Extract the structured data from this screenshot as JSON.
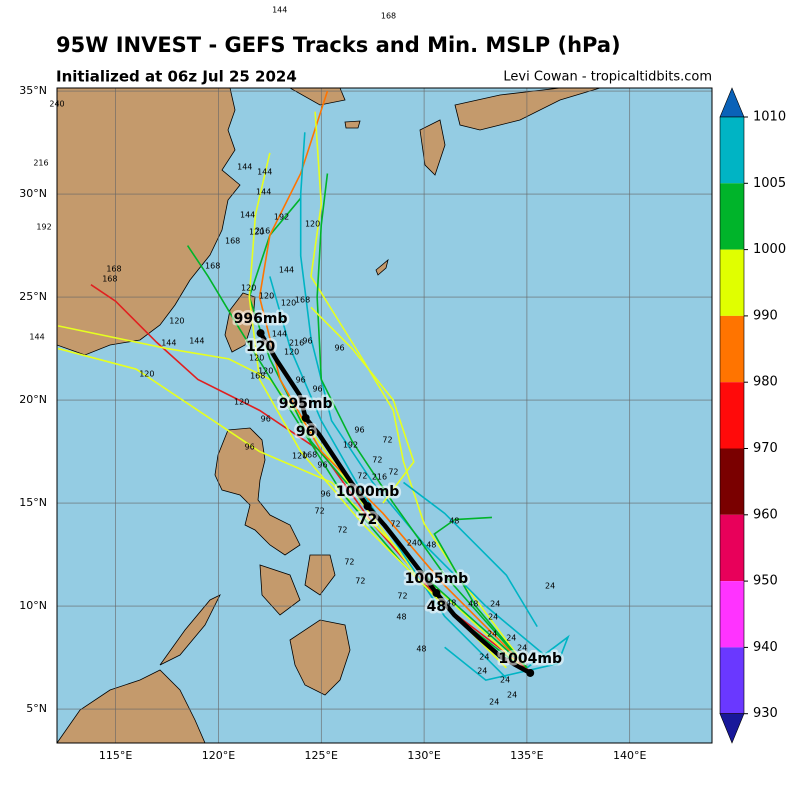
{
  "map": {
    "title": "95W INVEST - GEFS Tracks and Min. MSLP (hPa)",
    "subtitle": "Initialized at 06z Jul 25 2024",
    "credit": "Levi Cowan - tropicaltidbits.com",
    "lon_range": [
      112.15,
      144
    ],
    "lat_range": [
      3.35,
      35.15
    ],
    "lon_ticks": [
      {
        "value": 115,
        "label": "115°E"
      },
      {
        "value": 120,
        "label": "120°E"
      },
      {
        "value": 125,
        "label": "125°E"
      },
      {
        "value": 130,
        "label": "130°E"
      },
      {
        "value": 135,
        "label": "135°E"
      },
      {
        "value": 140,
        "label": "140°E"
      }
    ],
    "lat_ticks": [
      {
        "value": 5,
        "label": "5°N"
      },
      {
        "value": 10,
        "label": "10°N"
      },
      {
        "value": 15,
        "label": "15°N"
      },
      {
        "value": 20,
        "label": "20°N"
      },
      {
        "value": 25,
        "label": "25°N"
      },
      {
        "value": 30,
        "label": "30°N"
      },
      {
        "value": 35,
        "label": "35°N"
      }
    ],
    "colorbar": {
      "ticks": [
        1010,
        1005,
        1000,
        990,
        980,
        970,
        960,
        950,
        940,
        930
      ],
      "colors": [
        "#0a62b8",
        "#00b4c4",
        "#00b42a",
        "#e0ff00",
        "#ff7400",
        "#ff0a0a",
        "#7a0000",
        "#e8005a",
        "#ff33ff",
        "#6a38ff",
        "#18189a"
      ]
    },
    "members": [
      {
        "color": "#e02020",
        "lon": [
          135.2,
          131,
          127.5,
          125,
          122,
          119,
          117,
          115,
          113.8
        ],
        "lat": [
          6.8,
          10,
          14,
          17.5,
          19.5,
          21,
          22.8,
          24.8,
          25.6
        ]
      },
      {
        "color": "#e6ff20",
        "lon": [
          135,
          131,
          128,
          125.5,
          122,
          119,
          116,
          112.2
        ],
        "lat": [
          6.8,
          10.5,
          13.5,
          16,
          17.5,
          19.5,
          21.5,
          22.5
        ]
      },
      {
        "color": "#e6ff20",
        "lon": [
          134,
          130,
          127,
          124.5,
          122.5,
          120.5,
          117.5,
          112.2
        ],
        "lat": [
          7,
          11,
          15,
          18.5,
          21,
          22,
          22.5,
          23.6
        ]
      },
      {
        "color": "#00b42a",
        "lon": [
          135,
          130.5,
          127.5,
          124.5,
          122.5,
          121.5,
          122.5,
          124
        ],
        "lat": [
          7,
          11,
          14.5,
          18,
          22,
          25,
          28,
          29.8
        ]
      },
      {
        "color": "#ff7400",
        "lon": [
          135,
          131,
          128,
          125,
          123,
          122,
          122.5,
          124,
          125.3
        ],
        "lat": [
          7,
          11,
          14.5,
          17.5,
          21,
          25,
          28,
          31,
          35
        ]
      },
      {
        "color": "#e6ff20",
        "lon": [
          135,
          132,
          130,
          129,
          128.5,
          127,
          124.5,
          125,
          124.7
        ],
        "lat": [
          7,
          11,
          14,
          17,
          19.5,
          22,
          26,
          29.5,
          34
        ]
      },
      {
        "color": "#00b4c4",
        "lon": [
          136,
          133,
          130,
          127.5,
          125.5,
          124.5,
          124,
          124,
          124.2
        ],
        "lat": [
          7.5,
          10,
          13,
          16,
          19,
          23,
          27,
          30,
          33
        ]
      },
      {
        "color": "#00b42a",
        "lon": [
          135,
          131,
          128.5,
          126.5,
          125,
          124.8,
          125,
          125.3
        ],
        "lat": [
          7,
          11.5,
          15,
          18,
          21,
          25,
          28.5,
          31
        ]
      },
      {
        "color": "#00b4c4",
        "lon": [
          135,
          137,
          136.5,
          133,
          131
        ],
        "lat": [
          7,
          8.5,
          7.2,
          6.4,
          8
        ]
      },
      {
        "color": "#00b4c4",
        "lon": [
          134,
          131,
          129,
          127,
          125,
          123.5,
          122.5
        ],
        "lat": [
          6.5,
          9.5,
          12.5,
          15.5,
          19,
          22.5,
          26
        ]
      },
      {
        "color": "#00b42a",
        "lon": [
          135,
          132.5,
          130.5,
          131.5,
          133.3
        ],
        "lat": [
          7,
          10,
          13.5,
          14.2,
          14.3
        ]
      },
      {
        "color": "#e6ff20",
        "lon": [
          128,
          129.5,
          128.5,
          126.5,
          124.5
        ],
        "lat": [
          15,
          17,
          20,
          22.5,
          24.5
        ]
      },
      {
        "color": "#00b4c4",
        "lon": [
          135.5,
          134,
          132.5,
          131,
          129
        ],
        "lat": [
          9,
          11.5,
          13,
          14.5,
          16
        ]
      },
      {
        "color": "#00b42a",
        "lon": [
          134.5,
          131.5,
          129,
          126,
          123.5,
          121,
          119.5,
          118.5
        ],
        "lat": [
          7.2,
          9.5,
          12,
          15.5,
          19.5,
          23.5,
          26,
          27.5
        ]
      },
      {
        "color": "#e6ff20",
        "lon": [
          133.5,
          130,
          127,
          124,
          122,
          121.5,
          121.8,
          122.5
        ],
        "lat": [
          7.5,
          11,
          14,
          17.5,
          21,
          25,
          29,
          32
        ]
      }
    ],
    "mean_track": {
      "color": "#000000",
      "points": [
        {
          "lon": 135.16,
          "lat": 6.75,
          "pressure": "1004mb"
        },
        {
          "lon": 133.75,
          "lat": 7.52
        },
        {
          "lon": 132.68,
          "lat": 8.45
        },
        {
          "lon": 131.47,
          "lat": 9.56
        },
        {
          "lon": 130.6,
          "lat": 10.63,
          "hour": "48",
          "pressure": "1005mb"
        },
        {
          "lon": 129.77,
          "lat": 11.75
        },
        {
          "lon": 128.95,
          "lat": 12.82
        },
        {
          "lon": 128.07,
          "lat": 13.93
        },
        {
          "lon": 127.25,
          "lat": 14.85,
          "hour": "72",
          "pressure": "1000mb"
        },
        {
          "lon": 126.28,
          "lat": 16.26
        },
        {
          "lon": 124.92,
          "lat": 18.3
        },
        {
          "lon": 124.24,
          "lat": 19.13,
          "hour": "96",
          "pressure": "995mb"
        },
        {
          "lon": 123.95,
          "lat": 20.24
        },
        {
          "lon": 122.83,
          "lat": 21.94
        },
        {
          "lon": 122.05,
          "lat": 23.25,
          "hour": "120",
          "pressure": "996mb"
        }
      ]
    },
    "hour_labels": [
      {
        "text": "120",
        "lon": 117.98,
        "lat": 23.84
      },
      {
        "text": "144",
        "lon": 117.59,
        "lat": 22.77
      },
      {
        "text": "144",
        "lon": 118.95,
        "lat": 22.86
      },
      {
        "text": "120",
        "lon": 116.52,
        "lat": 21.26
      },
      {
        "text": "120",
        "lon": 121.13,
        "lat": 19.9
      },
      {
        "text": "96",
        "lon": 121.52,
        "lat": 17.72
      },
      {
        "text": "96",
        "lon": 122.3,
        "lat": 19.08
      },
      {
        "text": "168",
        "lon": 121.91,
        "lat": 21.17
      },
      {
        "text": "120",
        "lon": 122.3,
        "lat": 21.41
      },
      {
        "text": "120",
        "lon": 121.86,
        "lat": 22.04
      },
      {
        "text": "144",
        "lon": 122.97,
        "lat": 23.2
      },
      {
        "text": "120",
        "lon": 123.56,
        "lat": 22.33
      },
      {
        "text": "216",
        "lon": 123.8,
        "lat": 22.77
      },
      {
        "text": "96",
        "lon": 124.33,
        "lat": 22.86
      },
      {
        "text": "96",
        "lon": 125.89,
        "lat": 22.52
      },
      {
        "text": "120",
        "lon": 121.47,
        "lat": 25.44
      },
      {
        "text": "120",
        "lon": 122.34,
        "lat": 25.05
      },
      {
        "text": "120",
        "lon": 123.41,
        "lat": 24.71
      },
      {
        "text": "168",
        "lon": 124.09,
        "lat": 24.85
      },
      {
        "text": "144",
        "lon": 123.31,
        "lat": 26.31
      },
      {
        "text": "168",
        "lon": 119.72,
        "lat": 26.51
      },
      {
        "text": "168",
        "lon": 120.69,
        "lat": 27.72
      },
      {
        "text": "216",
        "lon": 122.15,
        "lat": 28.2
      },
      {
        "text": "120",
        "lon": 121.86,
        "lat": 28.16
      },
      {
        "text": "144",
        "lon": 121.42,
        "lat": 28.98
      },
      {
        "text": "192",
        "lon": 123.07,
        "lat": 28.88
      },
      {
        "text": "120",
        "lon": 124.58,
        "lat": 28.54
      },
      {
        "text": "144",
        "lon": 122.2,
        "lat": 30.1
      },
      {
        "text": "144",
        "lon": 122.25,
        "lat": 31.07
      },
      {
        "text": "144",
        "lon": 121.28,
        "lat": 31.31
      },
      {
        "text": "168",
        "lon": 114.92,
        "lat": 26.36
      },
      {
        "text": "168",
        "lon": 114.72,
        "lat": 25.87
      },
      {
        "text": "96",
        "lon": 124.0,
        "lat": 20.97
      },
      {
        "text": "96",
        "lon": 124.82,
        "lat": 20.53
      },
      {
        "text": "192",
        "lon": 126.42,
        "lat": 17.81
      },
      {
        "text": "96",
        "lon": 126.86,
        "lat": 18.54
      },
      {
        "text": "72",
        "lon": 128.22,
        "lat": 18.06
      },
      {
        "text": "72",
        "lon": 127.73,
        "lat": 17.09
      },
      {
        "text": "72",
        "lon": 128.51,
        "lat": 16.5
      },
      {
        "text": "216",
        "lon": 127.83,
        "lat": 16.26
      },
      {
        "text": "72",
        "lon": 127.0,
        "lat": 16.31
      },
      {
        "text": "120",
        "lon": 123.95,
        "lat": 17.28
      },
      {
        "text": "168",
        "lon": 124.43,
        "lat": 17.33
      },
      {
        "text": "96",
        "lon": 125.06,
        "lat": 16.84
      },
      {
        "text": "96",
        "lon": 125.21,
        "lat": 15.44
      },
      {
        "text": "72",
        "lon": 124.92,
        "lat": 14.61
      },
      {
        "text": "72",
        "lon": 126.03,
        "lat": 13.69
      },
      {
        "text": "72",
        "lon": 128.61,
        "lat": 13.98
      },
      {
        "text": "48",
        "lon": 131.47,
        "lat": 14.13
      },
      {
        "text": "72",
        "lon": 126.37,
        "lat": 12.14
      },
      {
        "text": "72",
        "lon": 126.9,
        "lat": 11.22
      },
      {
        "text": "240",
        "lon": 129.53,
        "lat": 13.06
      },
      {
        "text": "48",
        "lon": 130.35,
        "lat": 12.96
      },
      {
        "text": "72",
        "lon": 128.95,
        "lat": 10.49
      },
      {
        "text": "48",
        "lon": 128.9,
        "lat": 9.47
      },
      {
        "text": "48",
        "lon": 131.32,
        "lat": 10.15
      },
      {
        "text": "48",
        "lon": 132.39,
        "lat": 10.1
      },
      {
        "text": "24",
        "lon": 133.46,
        "lat": 10.1
      },
      {
        "text": "24",
        "lon": 133.36,
        "lat": 9.47
      },
      {
        "text": "24",
        "lon": 136.13,
        "lat": 10.97
      },
      {
        "text": "24",
        "lon": 133.31,
        "lat": 8.64
      },
      {
        "text": "24",
        "lon": 134.24,
        "lat": 8.45
      },
      {
        "text": "24",
        "lon": 134.77,
        "lat": 7.96
      },
      {
        "text": "24",
        "lon": 132.93,
        "lat": 7.52
      },
      {
        "text": "24",
        "lon": 132.83,
        "lat": 6.84
      },
      {
        "text": "24",
        "lon": 133.94,
        "lat": 6.41
      },
      {
        "text": "24",
        "lon": 134.28,
        "lat": 5.68
      },
      {
        "text": "24",
        "lon": 133.41,
        "lat": 5.34
      },
      {
        "text": "48",
        "lon": 129.87,
        "lat": 7.91
      },
      {
        "text": "144",
        "lon": 122.98,
        "lat": 38.93
      },
      {
        "text": "168",
        "lon": 128.27,
        "lat": 38.64
      },
      {
        "text": "240",
        "lon": 112.15,
        "lat": 34.37
      },
      {
        "text": "216",
        "lon": 111.37,
        "lat": 31.5
      },
      {
        "text": "192",
        "lon": 111.52,
        "lat": 28.4
      },
      {
        "text": "144",
        "lon": 111.18,
        "lat": 23.06
      }
    ]
  }
}
